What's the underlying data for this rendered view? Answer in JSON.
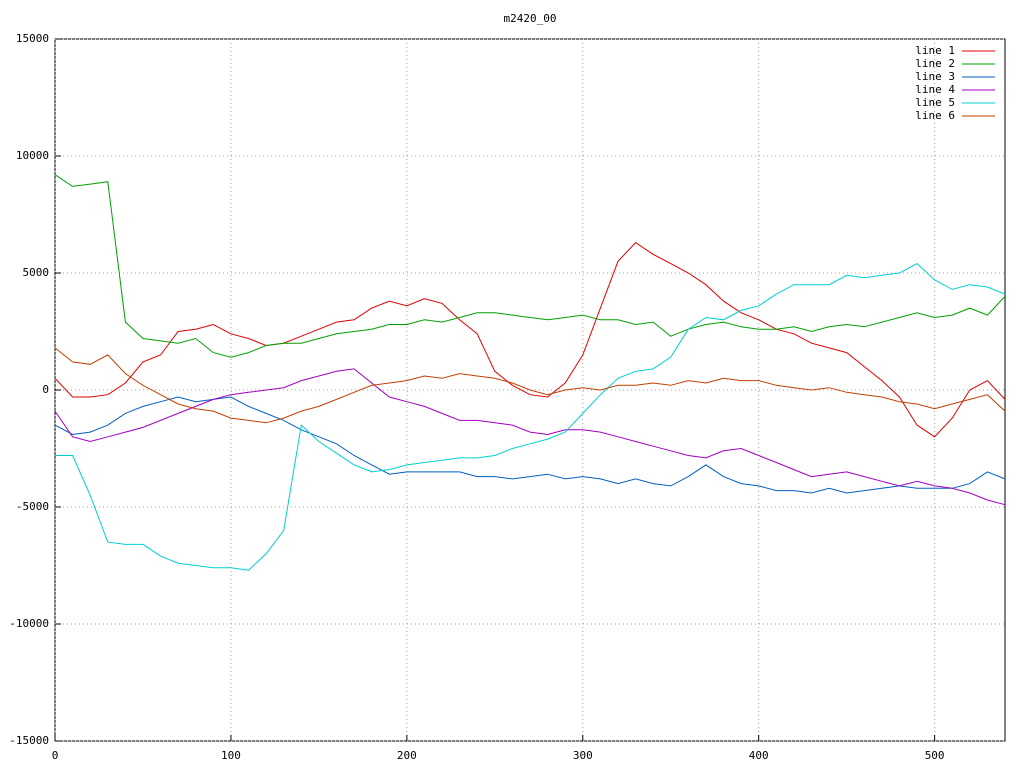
{
  "chart_data": {
    "type": "line",
    "title": "m2420_00",
    "x": [
      0,
      10,
      20,
      30,
      40,
      50,
      60,
      70,
      80,
      90,
      100,
      110,
      120,
      130,
      140,
      150,
      160,
      170,
      180,
      190,
      200,
      210,
      220,
      230,
      240,
      250,
      260,
      270,
      280,
      290,
      300,
      310,
      320,
      330,
      340,
      350,
      360,
      370,
      380,
      390,
      400,
      410,
      420,
      430,
      440,
      450,
      460,
      470,
      480,
      490,
      500,
      510,
      520,
      530,
      540
    ],
    "xlim": [
      0,
      540
    ],
    "xticks": [
      0,
      100,
      200,
      300,
      400,
      500
    ],
    "ylim": [
      -15000,
      15000
    ],
    "yticks": [
      -15000,
      -10000,
      -5000,
      0,
      5000,
      10000,
      15000
    ],
    "grid": true,
    "legend": "top-right",
    "series": [
      {
        "name": "line 1",
        "color": "#e00000",
        "values": [
          500,
          -300,
          -300,
          -200,
          300,
          1200,
          1500,
          2500,
          2600,
          2800,
          2400,
          2200,
          1900,
          2000,
          2300,
          2600,
          2900,
          3000,
          3500,
          3800,
          3600,
          3900,
          3700,
          3000,
          2400,
          800,
          200,
          -200,
          -300,
          300,
          1500,
          3500,
          5500,
          6300,
          5800,
          5400,
          5000,
          4500,
          3800,
          3300,
          3000,
          2600,
          2400,
          2000,
          1800,
          1600,
          1000,
          400,
          -300,
          -1500,
          -2000,
          -1200,
          0,
          400,
          -400
        ]
      },
      {
        "name": "line 2",
        "color": "#00a000",
        "values": [
          9200,
          8700,
          8800,
          8900,
          2900,
          2200,
          2100,
          2000,
          2200,
          1600,
          1400,
          1600,
          1900,
          2000,
          2000,
          2200,
          2400,
          2500,
          2600,
          2800,
          2800,
          3000,
          2900,
          3100,
          3300,
          3300,
          3200,
          3100,
          3000,
          3100,
          3200,
          3000,
          3000,
          2800,
          2900,
          2300,
          2600,
          2800,
          2900,
          2700,
          2600,
          2600,
          2700,
          2500,
          2700,
          2800,
          2700,
          2900,
          3100,
          3300,
          3100,
          3200,
          3500,
          3200,
          4000
        ]
      },
      {
        "name": "line 3",
        "color": "#0060c0",
        "values": [
          -1500,
          -1900,
          -1800,
          -1500,
          -1000,
          -700,
          -500,
          -300,
          -500,
          -400,
          -300,
          -700,
          -1000,
          -1300,
          -1700,
          -2000,
          -2300,
          -2800,
          -3200,
          -3600,
          -3500,
          -3500,
          -3500,
          -3500,
          -3700,
          -3700,
          -3800,
          -3700,
          -3600,
          -3800,
          -3700,
          -3800,
          -4000,
          -3800,
          -4000,
          -4100,
          -3700,
          -3200,
          -3700,
          -4000,
          -4100,
          -4300,
          -4300,
          -4400,
          -4200,
          -4400,
          -4300,
          -4200,
          -4100,
          -4200,
          -4200,
          -4200,
          -4000,
          -3500,
          -3800
        ]
      },
      {
        "name": "line 4",
        "color": "#a000c0",
        "values": [
          -900,
          -2000,
          -2200,
          -2000,
          -1800,
          -1600,
          -1300,
          -1000,
          -700,
          -400,
          -200,
          -100,
          0,
          100,
          400,
          600,
          800,
          900,
          300,
          -300,
          -500,
          -700,
          -1000,
          -1300,
          -1300,
          -1400,
          -1500,
          -1800,
          -1900,
          -1700,
          -1700,
          -1800,
          -2000,
          -2200,
          -2400,
          -2600,
          -2800,
          -2900,
          -2600,
          -2500,
          -2800,
          -3100,
          -3400,
          -3700,
          -3600,
          -3500,
          -3700,
          -3900,
          -4100,
          -3900,
          -4100,
          -4200,
          -4400,
          -4700,
          -4900
        ]
      },
      {
        "name": "line 5",
        "color": "#00d0d0",
        "values": [
          -2800,
          -2800,
          -4500,
          -6500,
          -6600,
          -6600,
          -7100,
          -7400,
          -7500,
          -7600,
          -7600,
          -7700,
          -7000,
          -6000,
          -1500,
          -2200,
          -2700,
          -3200,
          -3500,
          -3400,
          -3200,
          -3100,
          -3000,
          -2900,
          -2900,
          -2800,
          -2500,
          -2300,
          -2100,
          -1800,
          -1000,
          -200,
          500,
          800,
          900,
          1400,
          2600,
          3100,
          3000,
          3400,
          3600,
          4100,
          4500,
          4500,
          4500,
          4900,
          4800,
          4900,
          5000,
          5400,
          4700,
          4300,
          4500,
          4400,
          4100
        ]
      },
      {
        "name": "line 6",
        "color": "#c04000",
        "values": [
          1800,
          1200,
          1100,
          1500,
          700,
          200,
          -200,
          -600,
          -800,
          -900,
          -1200,
          -1300,
          -1400,
          -1200,
          -900,
          -700,
          -400,
          -100,
          200,
          300,
          400,
          600,
          500,
          700,
          600,
          500,
          300,
          0,
          -200,
          0,
          100,
          0,
          200,
          200,
          300,
          200,
          400,
          300,
          500,
          400,
          400,
          200,
          100,
          0,
          100,
          -100,
          -200,
          -300,
          -500,
          -600,
          -800,
          -600,
          -400,
          -200,
          -900
        ]
      }
    ]
  }
}
